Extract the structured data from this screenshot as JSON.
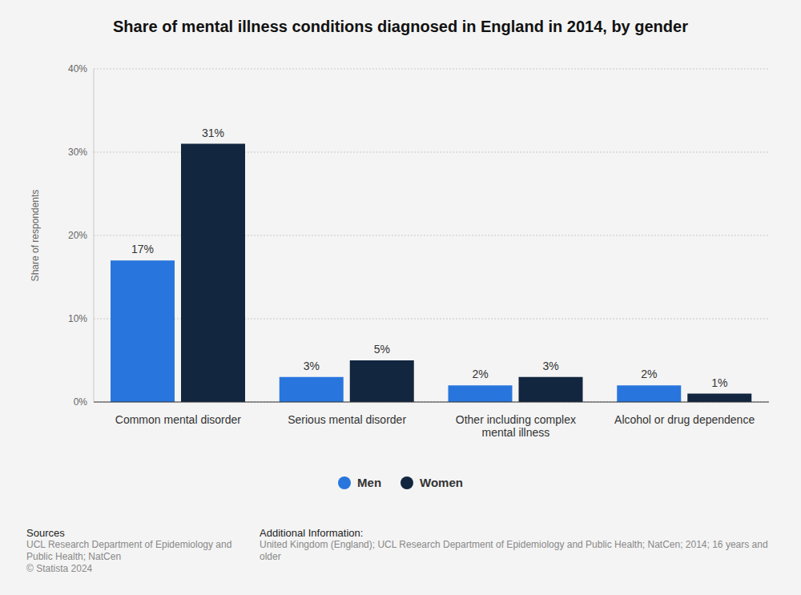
{
  "chart_data": {
    "type": "bar",
    "title": "Share of mental illness conditions diagnosed in England in 2014, by gender",
    "y_label": "Share of respondents",
    "categories": [
      "Common mental disorder",
      "Serious mental disorder",
      "Other including complex mental illness",
      "Alcohol or drug dependence"
    ],
    "series": [
      {
        "name": "Men",
        "color": "#2876dd",
        "values": [
          17,
          3,
          2,
          2
        ],
        "value_labels": [
          "17%",
          "3%",
          "2%",
          "2%"
        ]
      },
      {
        "name": "Women",
        "color": "#12263f",
        "values": [
          31,
          5,
          3,
          1
        ],
        "value_labels": [
          "31%",
          "5%",
          "3%",
          "1%"
        ]
      }
    ],
    "ylim": [
      0,
      40
    ],
    "yticks": [
      {
        "value": 0,
        "label": "0%"
      },
      {
        "value": 10,
        "label": "10%"
      },
      {
        "value": 20,
        "label": "20%"
      },
      {
        "value": 30,
        "label": "30%"
      },
      {
        "value": 40,
        "label": "40%"
      }
    ],
    "grid": true,
    "legend": "bottom",
    "data_labels": true,
    "sources_title": "Sources",
    "sources": [
      "UCL Research Department of Epidemiology and Public Health; NatCen",
      "© Statista 2024"
    ],
    "additional_info_title": "Additional Information:",
    "additional_info": "United Kingdom (England); UCL Research Department of Epidemiology and Public Health; NatCen; 2014; 16 years and older"
  }
}
